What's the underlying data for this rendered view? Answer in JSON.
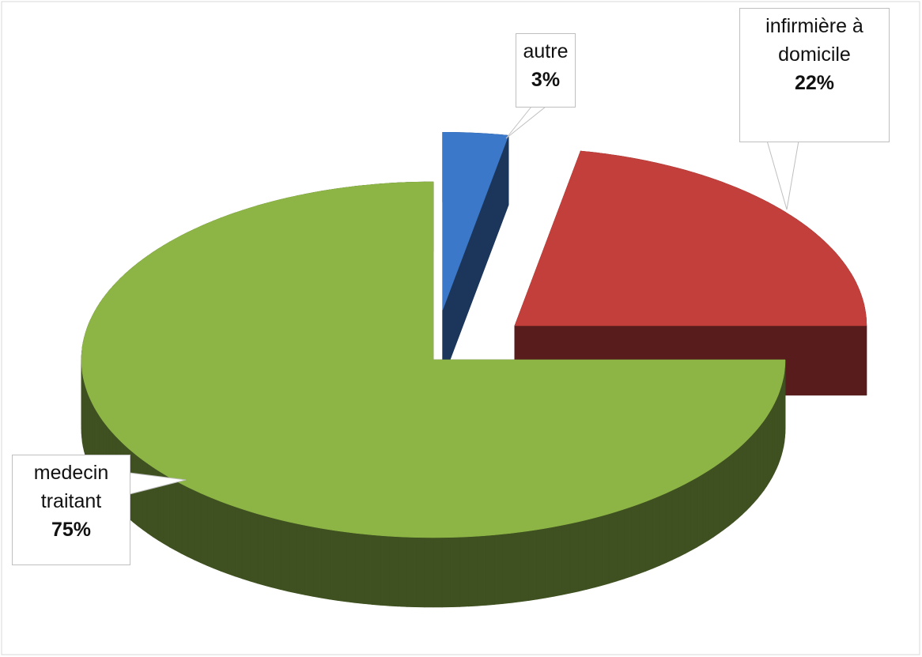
{
  "chart_data": {
    "type": "pie",
    "categories": [
      "autre",
      "infirmière à domicile",
      "medecin traitant"
    ],
    "values": [
      3,
      22,
      75
    ],
    "value_labels": [
      "3%",
      "22%",
      "75%"
    ],
    "colors": [
      "#3b78c9",
      "#c23f3b",
      "#8db546"
    ]
  }
}
